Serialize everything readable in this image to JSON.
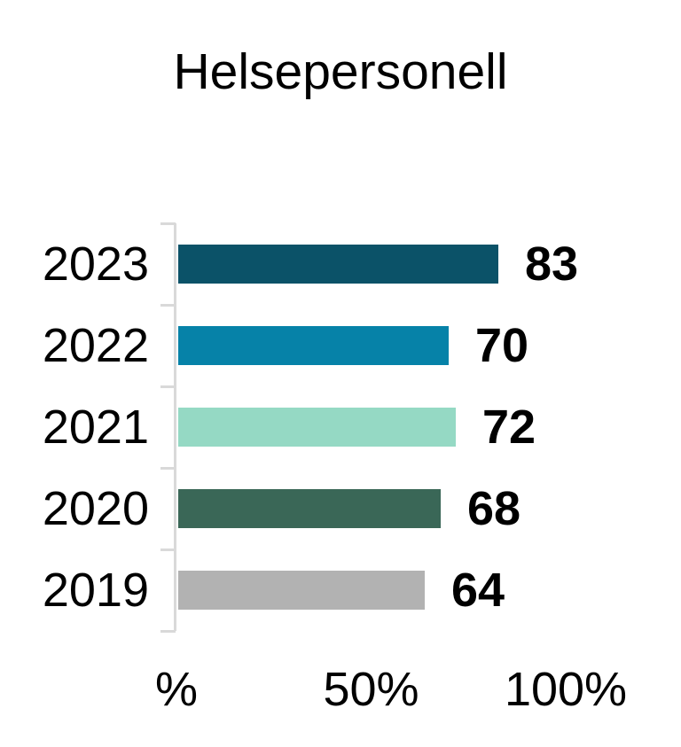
{
  "page": {
    "background": "#ffffff"
  },
  "chart_data": {
    "type": "bar",
    "orientation": "horizontal",
    "title": "Helsepersonell",
    "categories": [
      "2023",
      "2022",
      "2021",
      "2020",
      "2019"
    ],
    "values": [
      83,
      70,
      72,
      68,
      64
    ],
    "value_labels": [
      "83",
      "70",
      "72",
      "68",
      "64"
    ],
    "bar_colors": [
      "#0b5268",
      "#0682a8",
      "#95d9c4",
      "#3a6757",
      "#b2b2b2"
    ],
    "bar_patterns": [
      null,
      null,
      null,
      null,
      "gray-dotted"
    ],
    "pattern_dot_color": "#8e8e8e",
    "xlim": [
      0,
      100
    ],
    "x_ticks": [
      {
        "label": "%",
        "value": 0
      },
      {
        "label": "50%",
        "value": 50
      },
      {
        "label": "100%",
        "value": 100
      }
    ],
    "grid": false,
    "legend": null,
    "axis_color": "#d9d9d9",
    "text_color": "#000000"
  }
}
